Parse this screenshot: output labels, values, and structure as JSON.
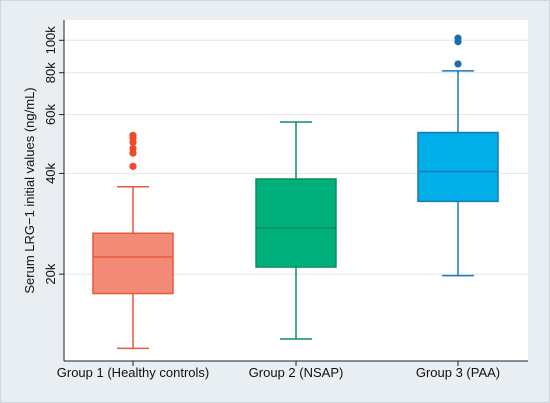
{
  "chart_data": {
    "type": "box",
    "ylabel": "Serum LRG−1 initial values (ng/mL)",
    "yscale": "log",
    "ylim": [
      11000,
      115000
    ],
    "yticks": [
      {
        "value": 20000,
        "label": "20k"
      },
      {
        "value": 40000,
        "label": "40k"
      },
      {
        "value": 60000,
        "label": "60k"
      },
      {
        "value": 80000,
        "label": "80k"
      },
      {
        "value": 100000,
        "label": "100k"
      }
    ],
    "grid": true,
    "categories": [
      "Group 1 (Healthy controls)",
      "Group 2 (NSAP)",
      "Group 3 (PAA)"
    ],
    "series": [
      {
        "whisker_low": 12000,
        "q1": 17500,
        "median": 22500,
        "q3": 26500,
        "whisker_high": 36500,
        "outliers": [
          42000,
          46000,
          47500,
          49500,
          51000,
          52000
        ],
        "color": "#f28c78",
        "edge": "#e8583c",
        "outlier_color": "#ee4a2a"
      },
      {
        "whisker_low": 12800,
        "q1": 21000,
        "median": 27500,
        "q3": 38500,
        "whisker_high": 57000,
        "outliers": [],
        "color": "#00b07a",
        "edge": "#0e8d5a",
        "outlier_color": "#0e8d5a"
      },
      {
        "whisker_low": 19800,
        "q1": 33000,
        "median": 40500,
        "q3": 53000,
        "whisker_high": 81000,
        "outliers": [
          85000,
          99000,
          101500
        ],
        "color": "#00aee8",
        "edge": "#1a78b8",
        "outlier_color": "#1a6cb5"
      }
    ]
  }
}
